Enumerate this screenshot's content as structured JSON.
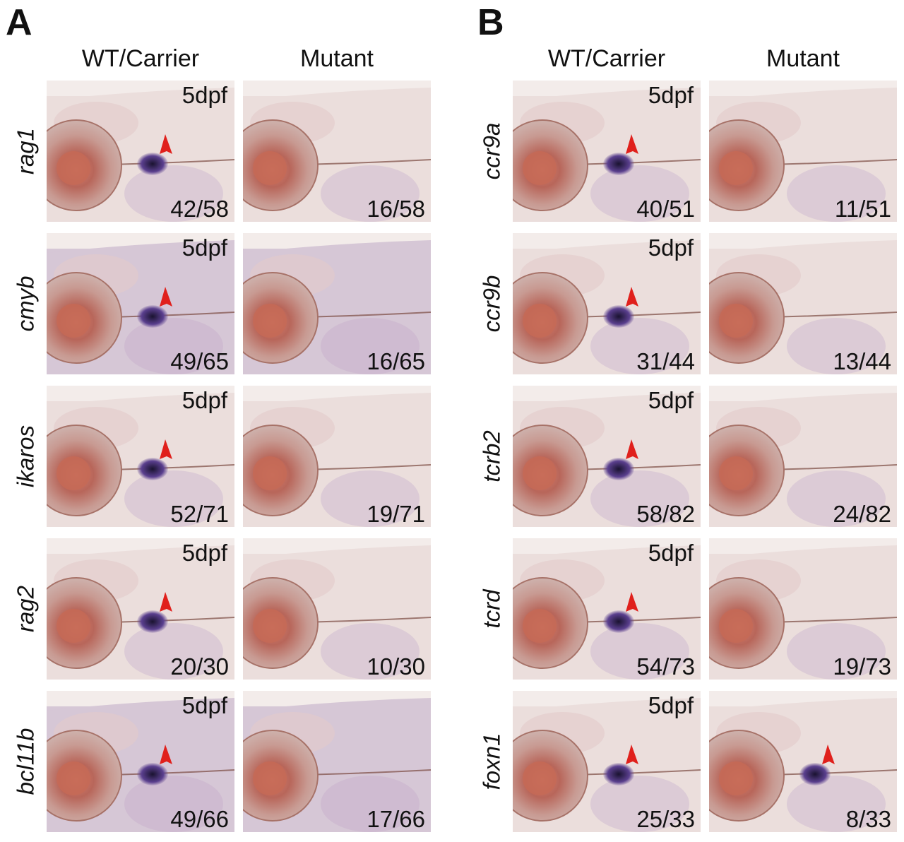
{
  "panels": [
    {
      "letter": "A",
      "col_headers": [
        "WT/Carrier",
        "Mutant"
      ],
      "rows": [
        {
          "gene": "rag1",
          "stage": "5dpf",
          "wt_ratio": "42/58",
          "mut_ratio": "16/58"
        },
        {
          "gene": "cmyb",
          "stage": "5dpf",
          "wt_ratio": "49/65",
          "mut_ratio": "16/65"
        },
        {
          "gene": "ikaros",
          "stage": "5dpf",
          "wt_ratio": "52/71",
          "mut_ratio": "19/71"
        },
        {
          "gene": "rag2",
          "stage": "5dpf",
          "wt_ratio": "20/30",
          "mut_ratio": "10/30"
        },
        {
          "gene": "bcl11b",
          "stage": "5dpf",
          "wt_ratio": "49/66",
          "mut_ratio": "17/66"
        }
      ]
    },
    {
      "letter": "B",
      "col_headers": [
        "WT/Carrier",
        "Mutant"
      ],
      "rows": [
        {
          "gene": "ccr9a",
          "stage": "5dpf",
          "wt_ratio": "40/51",
          "mut_ratio": "11/51"
        },
        {
          "gene": "ccr9b",
          "stage": "5dpf",
          "wt_ratio": "31/44",
          "mut_ratio": "13/44"
        },
        {
          "gene": "tcrb2",
          "stage": "5dpf",
          "wt_ratio": "58/82",
          "mut_ratio": "24/82"
        },
        {
          "gene": "tcrd",
          "stage": "5dpf",
          "wt_ratio": "54/73",
          "mut_ratio": "19/73"
        },
        {
          "gene": "foxn1",
          "stage": "5dpf",
          "wt_ratio": "25/33",
          "mut_ratio": "8/33"
        }
      ]
    }
  ],
  "colors": {
    "arrowhead": "#e0201c",
    "stain_dark": "#1a1330",
    "stain_purple": "#5a3f8e",
    "background_tissue": "#e9d8d8"
  }
}
